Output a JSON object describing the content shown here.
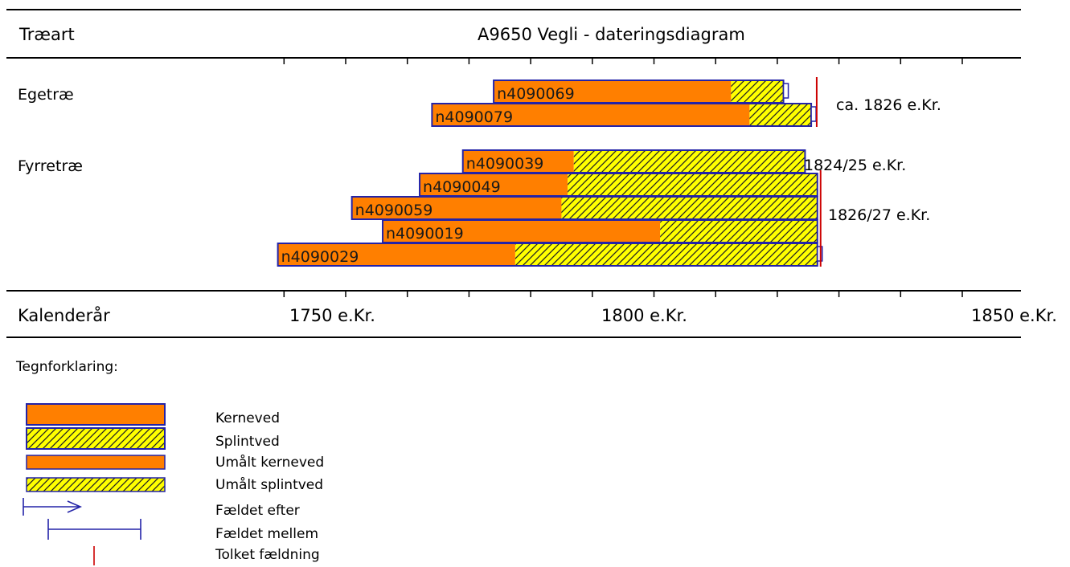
{
  "header": {
    "species_label": "Træart",
    "title": "A9650 Vegli - dateringsdiagram"
  },
  "footer": {
    "axis_label": "Kalenderår",
    "ticks": [
      "1750 e.Kr.",
      "1800 e.Kr.",
      "1850 e.Kr."
    ]
  },
  "legend": {
    "title": "Tegnforklaring:",
    "items": [
      {
        "label": "Kerneved",
        "symbol": "heartwood"
      },
      {
        "label": "Splintved",
        "symbol": "sapwood"
      },
      {
        "label": "Umålt kerneved",
        "symbol": "unmeasured-heartwood"
      },
      {
        "label": "Umålt splintved",
        "symbol": "unmeasured-sapwood"
      },
      {
        "label": "Fældet efter",
        "symbol": "felled-after-arrow"
      },
      {
        "label": "Fældet mellem",
        "symbol": "felled-between-bracket"
      },
      {
        "label": "Tolket fældning",
        "symbol": "interpreted-felling-line"
      }
    ]
  },
  "colors": {
    "heartwood": "#ff7f00",
    "sapwood": "#ffff00",
    "outline": "#2323a8",
    "felling_line": "#cc0000"
  },
  "chart_data": {
    "type": "bar",
    "orientation": "horizontal",
    "x_unit": "year AD",
    "xlim": [
      1739,
      1856
    ],
    "x_ticks": [
      1750,
      1800,
      1850
    ],
    "groups": [
      {
        "name": "Egetræ",
        "felling_label": "ca. 1826 e.Kr.",
        "felling_year": 1826,
        "samples": [
          {
            "id": "n4090069",
            "start": 1774,
            "heartwood_end": 1812.5,
            "sapwood_end": 1821,
            "end_marker": true
          },
          {
            "id": "n4090079",
            "start": 1764,
            "heartwood_end": 1815.5,
            "sapwood_end": 1825.5,
            "end_marker": true
          }
        ]
      },
      {
        "name": "Fyrretræ",
        "felling_label": "1824/25 e.Kr.",
        "felling_year": 1824.5,
        "samples": [
          {
            "id": "n4090039",
            "start": 1769,
            "heartwood_end": 1787,
            "sapwood_end": 1824.5
          }
        ]
      },
      {
        "name": "",
        "felling_label": "1826/27 e.Kr.",
        "felling_year": 1826.5,
        "samples": [
          {
            "id": "n4090049",
            "start": 1762,
            "heartwood_end": 1786,
            "sapwood_end": 1826.5
          },
          {
            "id": "n4090059",
            "start": 1751,
            "heartwood_end": 1785,
            "sapwood_end": 1826.5
          },
          {
            "id": "n4090019",
            "start": 1756,
            "heartwood_end": 1801,
            "sapwood_end": 1826.5
          },
          {
            "id": "n4090029",
            "start": 1739,
            "heartwood_end": 1777.5,
            "sapwood_end": 1826.5,
            "end_marker": true
          }
        ]
      }
    ]
  }
}
